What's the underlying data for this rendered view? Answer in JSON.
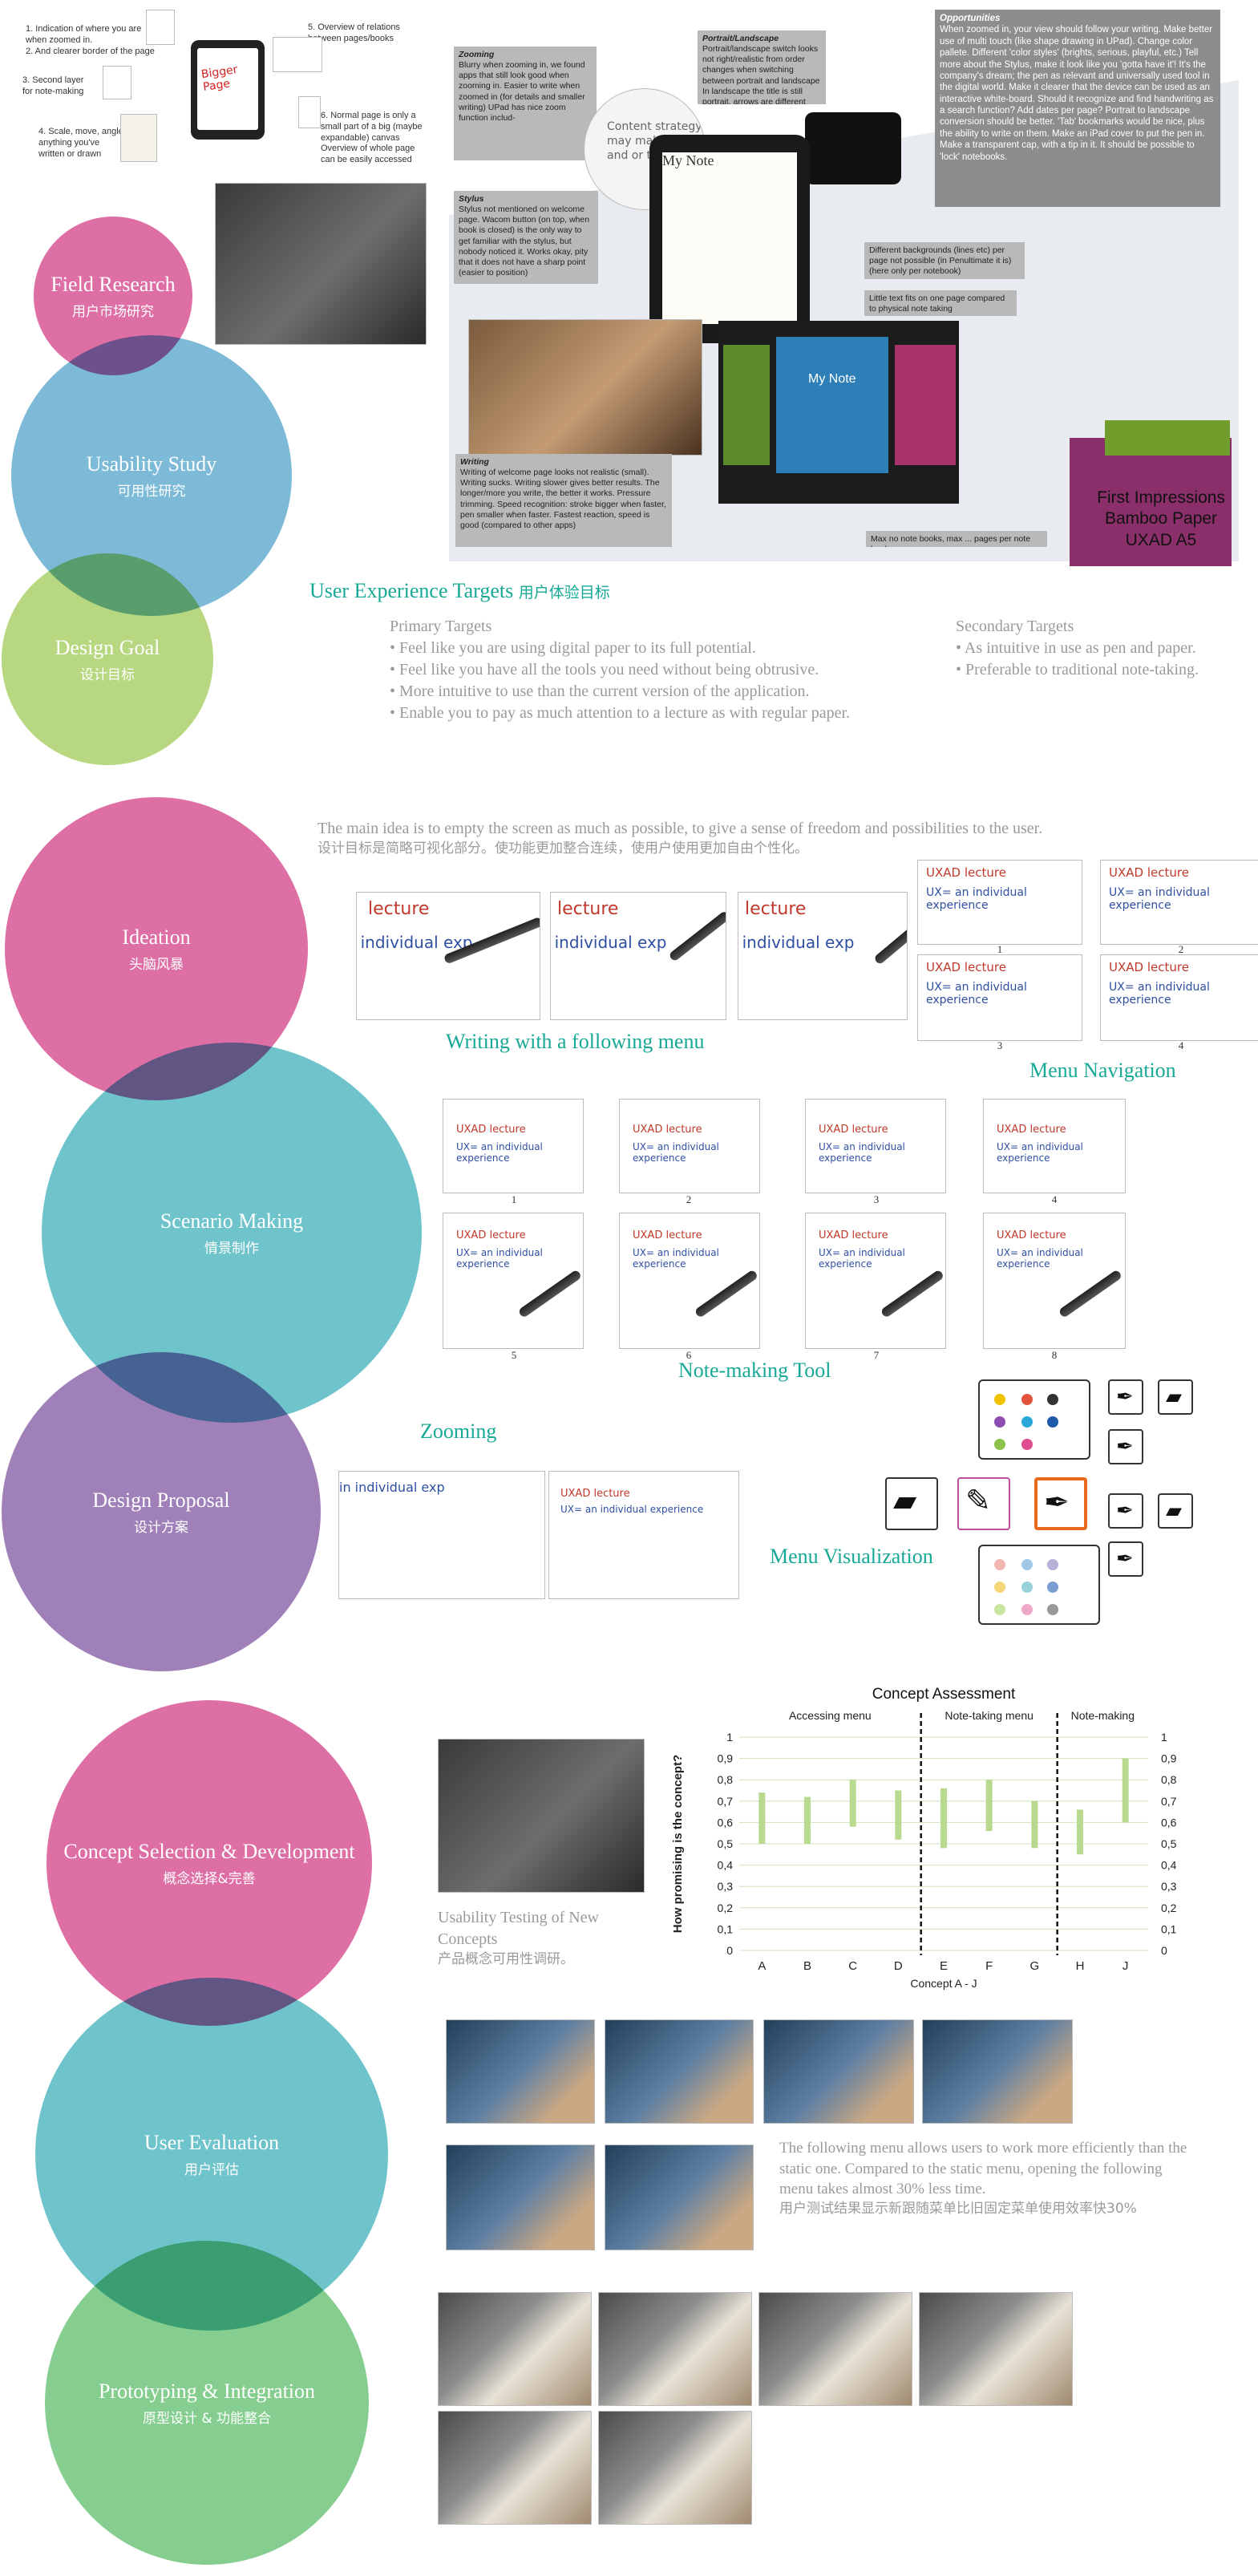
{
  "circles": {
    "field_research": {
      "en": "Field Research",
      "cn": "用户市场研究"
    },
    "usability_study": {
      "en": "Usability Study",
      "cn": "可用性研究"
    },
    "design_goal": {
      "en": "Design Goal",
      "cn": "设计目标"
    },
    "ideation": {
      "en": "Ideation",
      "cn": "头脑风暴"
    },
    "scenario_making": {
      "en": "Scenario Making",
      "cn": "情景制作"
    },
    "design_proposal": {
      "en": "Design Proposal",
      "cn": "设计方案"
    },
    "concept_selection": {
      "en": "Concept Selection & Development",
      "cn": "概念选择&完善"
    },
    "user_evaluation": {
      "en": "User Evaluation",
      "cn": "用户评估"
    },
    "prototyping": {
      "en": "Prototyping & Integration",
      "cn": "原型设计 & 功能整合"
    }
  },
  "field_notes": {
    "n1": "1. Indication of where you are when zoomed in.",
    "n2": "2. And clearer border of the page",
    "n3": "3. Second layer for note-making",
    "n4": "4. Scale, move, angle anything you've written or drawn",
    "n5": "5. Overview of relations between pages/books",
    "n6": "6. Normal page is only a small part of a big (maybe expandable) canvas Overview of whole page can be easily accessed"
  },
  "usability_notes": {
    "zooming_title": "Zooming",
    "zooming_body": "Blurry when zooming in, we found apps that still look good when zooming in. Easier to write when zoomed in (for details and smaller writing) UPad has nice zoom function includ-",
    "portrait_title": "Portrait/Landscape",
    "portrait_body": "Portrait/landscape switch looks not right/realistic from order changes when switching between portrait and landscape In landscape the title is still portrait, arrows are different",
    "opportunities_title": "Opportunities",
    "opportunities_body": "When zoomed in, your view should follow your writing. Make better use of multi touch (like shape drawing in UPad). Change color pallete. Different 'color styles' (brights, serious, playful, etc.) Tell more about the Stylus, make it look like you 'gotta have it'! It's the company's dream; the pen as relevant and universally used tool in the digital world. Make it clearer that the device can be used as an interactive white-board. Should it recognize and find handwriting as a search function? Add dates per page? Portrait to landscape conversion should be better. 'Tab' bookmarks would be nice, plus the ability to write on them. Make an iPad cover to put the pen in. Make a transparent cap, with a tip in it. It should be possible to 'lock' notebooks.",
    "stylus_title": "Stylus",
    "stylus_body": "Stylus not mentioned on welcome page. Wacom button (on top, when book is closed) is the only way to get familiar with the stylus, but nobody noticed it. Works okay, pity that it does not have a sharp point (easier to position)",
    "backgrounds": "Different backgrounds (lines etc) per page not possible (in Penultimate it is) (here only per notebook)",
    "little_text": "Little text fits on one page compared to physical note taking",
    "writing_title": "Writing",
    "writing_body": "Writing of welcome page looks not realistic (small). Writing sucks. Writing slower gives better results. The longer/more you write, the better it works. Pressure trimming. Speed recognition: stroke bigger when faster, pen smaller when faster. Fastest reaction, speed is good (compared to other apps)",
    "max_books": "Max no note books, max ... pages per note book",
    "my_note": "My Note",
    "first_impressions": "First Impressions Bamboo Paper UXAD A5"
  },
  "ux_targets": {
    "heading": "User Experience Targets",
    "heading_cn": "用户体验目标",
    "primary_label": "Primary Targets",
    "primary": [
      "• Feel like you are using digital paper to its full potential.",
      "• Feel like you have all the tools you need without being obtrusive.",
      "• More intuitive to use than the current version of  the application.",
      "• Enable you to pay as much attention to a lecture as with regular paper."
    ],
    "secondary_label": "Secondary Targets",
    "secondary": [
      "• As intuitive in use as pen and paper.",
      "• Preferable to traditional note-taking."
    ]
  },
  "ideation": {
    "main_idea": "The main idea is to empty the screen as much as possible, to give a sense of  freedom and possibilities to the user.",
    "main_idea_cn": "设计目标是简略可视化部分。使功能更加整合连续，使用户使用更加自由个性化。",
    "sketch_text_a": "lecture",
    "sketch_text_b": "in individual exp",
    "nav_title": "UXAD lecture",
    "nav_text": "UX= an individual experience",
    "writing_menu": "Writing with a following menu",
    "menu_navigation": "Menu Navigation",
    "nav_nums": [
      "1",
      "2",
      "3",
      "4"
    ]
  },
  "scenario": {
    "nums": [
      "1",
      "2",
      "3",
      "4",
      "5",
      "6",
      "7",
      "8"
    ],
    "note_tool": "Note-making Tool",
    "sketch_label": "UXAD lecture",
    "sketch_text": "UX= an individual experience"
  },
  "proposal": {
    "zooming": "Zooming",
    "menu_visualization": "Menu Visualization"
  },
  "usability_testing": {
    "caption": "Usability Testing of New Concepts",
    "caption_cn": "产品概念可用性调研。"
  },
  "evaluation": {
    "text": "The following menu allows users to work more efficiently than the static one. Compared to the static menu, opening the following menu takes almost 30% less time.",
    "text_cn": "用户测试结果显示新跟随菜单比旧固定菜单使用效率快30%"
  },
  "chart_data": {
    "type": "bar",
    "title": "Concept Assessment",
    "xlabel": "Concept A - J",
    "ylabel": "How promising is the concept?",
    "categories": [
      "A",
      "B",
      "C",
      "D",
      "E",
      "F",
      "G",
      "H",
      "J"
    ],
    "ranges": [
      [
        0.5,
        0.74
      ],
      [
        0.5,
        0.72
      ],
      [
        0.58,
        0.8
      ],
      [
        0.52,
        0.75
      ],
      [
        0.48,
        0.76
      ],
      [
        0.56,
        0.8
      ],
      [
        0.48,
        0.7
      ],
      [
        0.45,
        0.66
      ],
      [
        0.6,
        0.9
      ]
    ],
    "groups": [
      "Accessing menu",
      "Note-taking menu",
      "Note-making"
    ],
    "ylim": [
      0,
      1
    ],
    "yticks": [
      "0",
      "0,1",
      "0,2",
      "0,3",
      "0,4",
      "0,5",
      "0,6",
      "0,7",
      "0,8",
      "0,9",
      "1"
    ],
    "bar_color": "#b9d98e"
  },
  "colors": {
    "accent_teal": "#17a996",
    "pink": "#dd6fa4",
    "blue": "#7cbad8",
    "green": "#b7d880",
    "purple": "#9f80b8"
  }
}
